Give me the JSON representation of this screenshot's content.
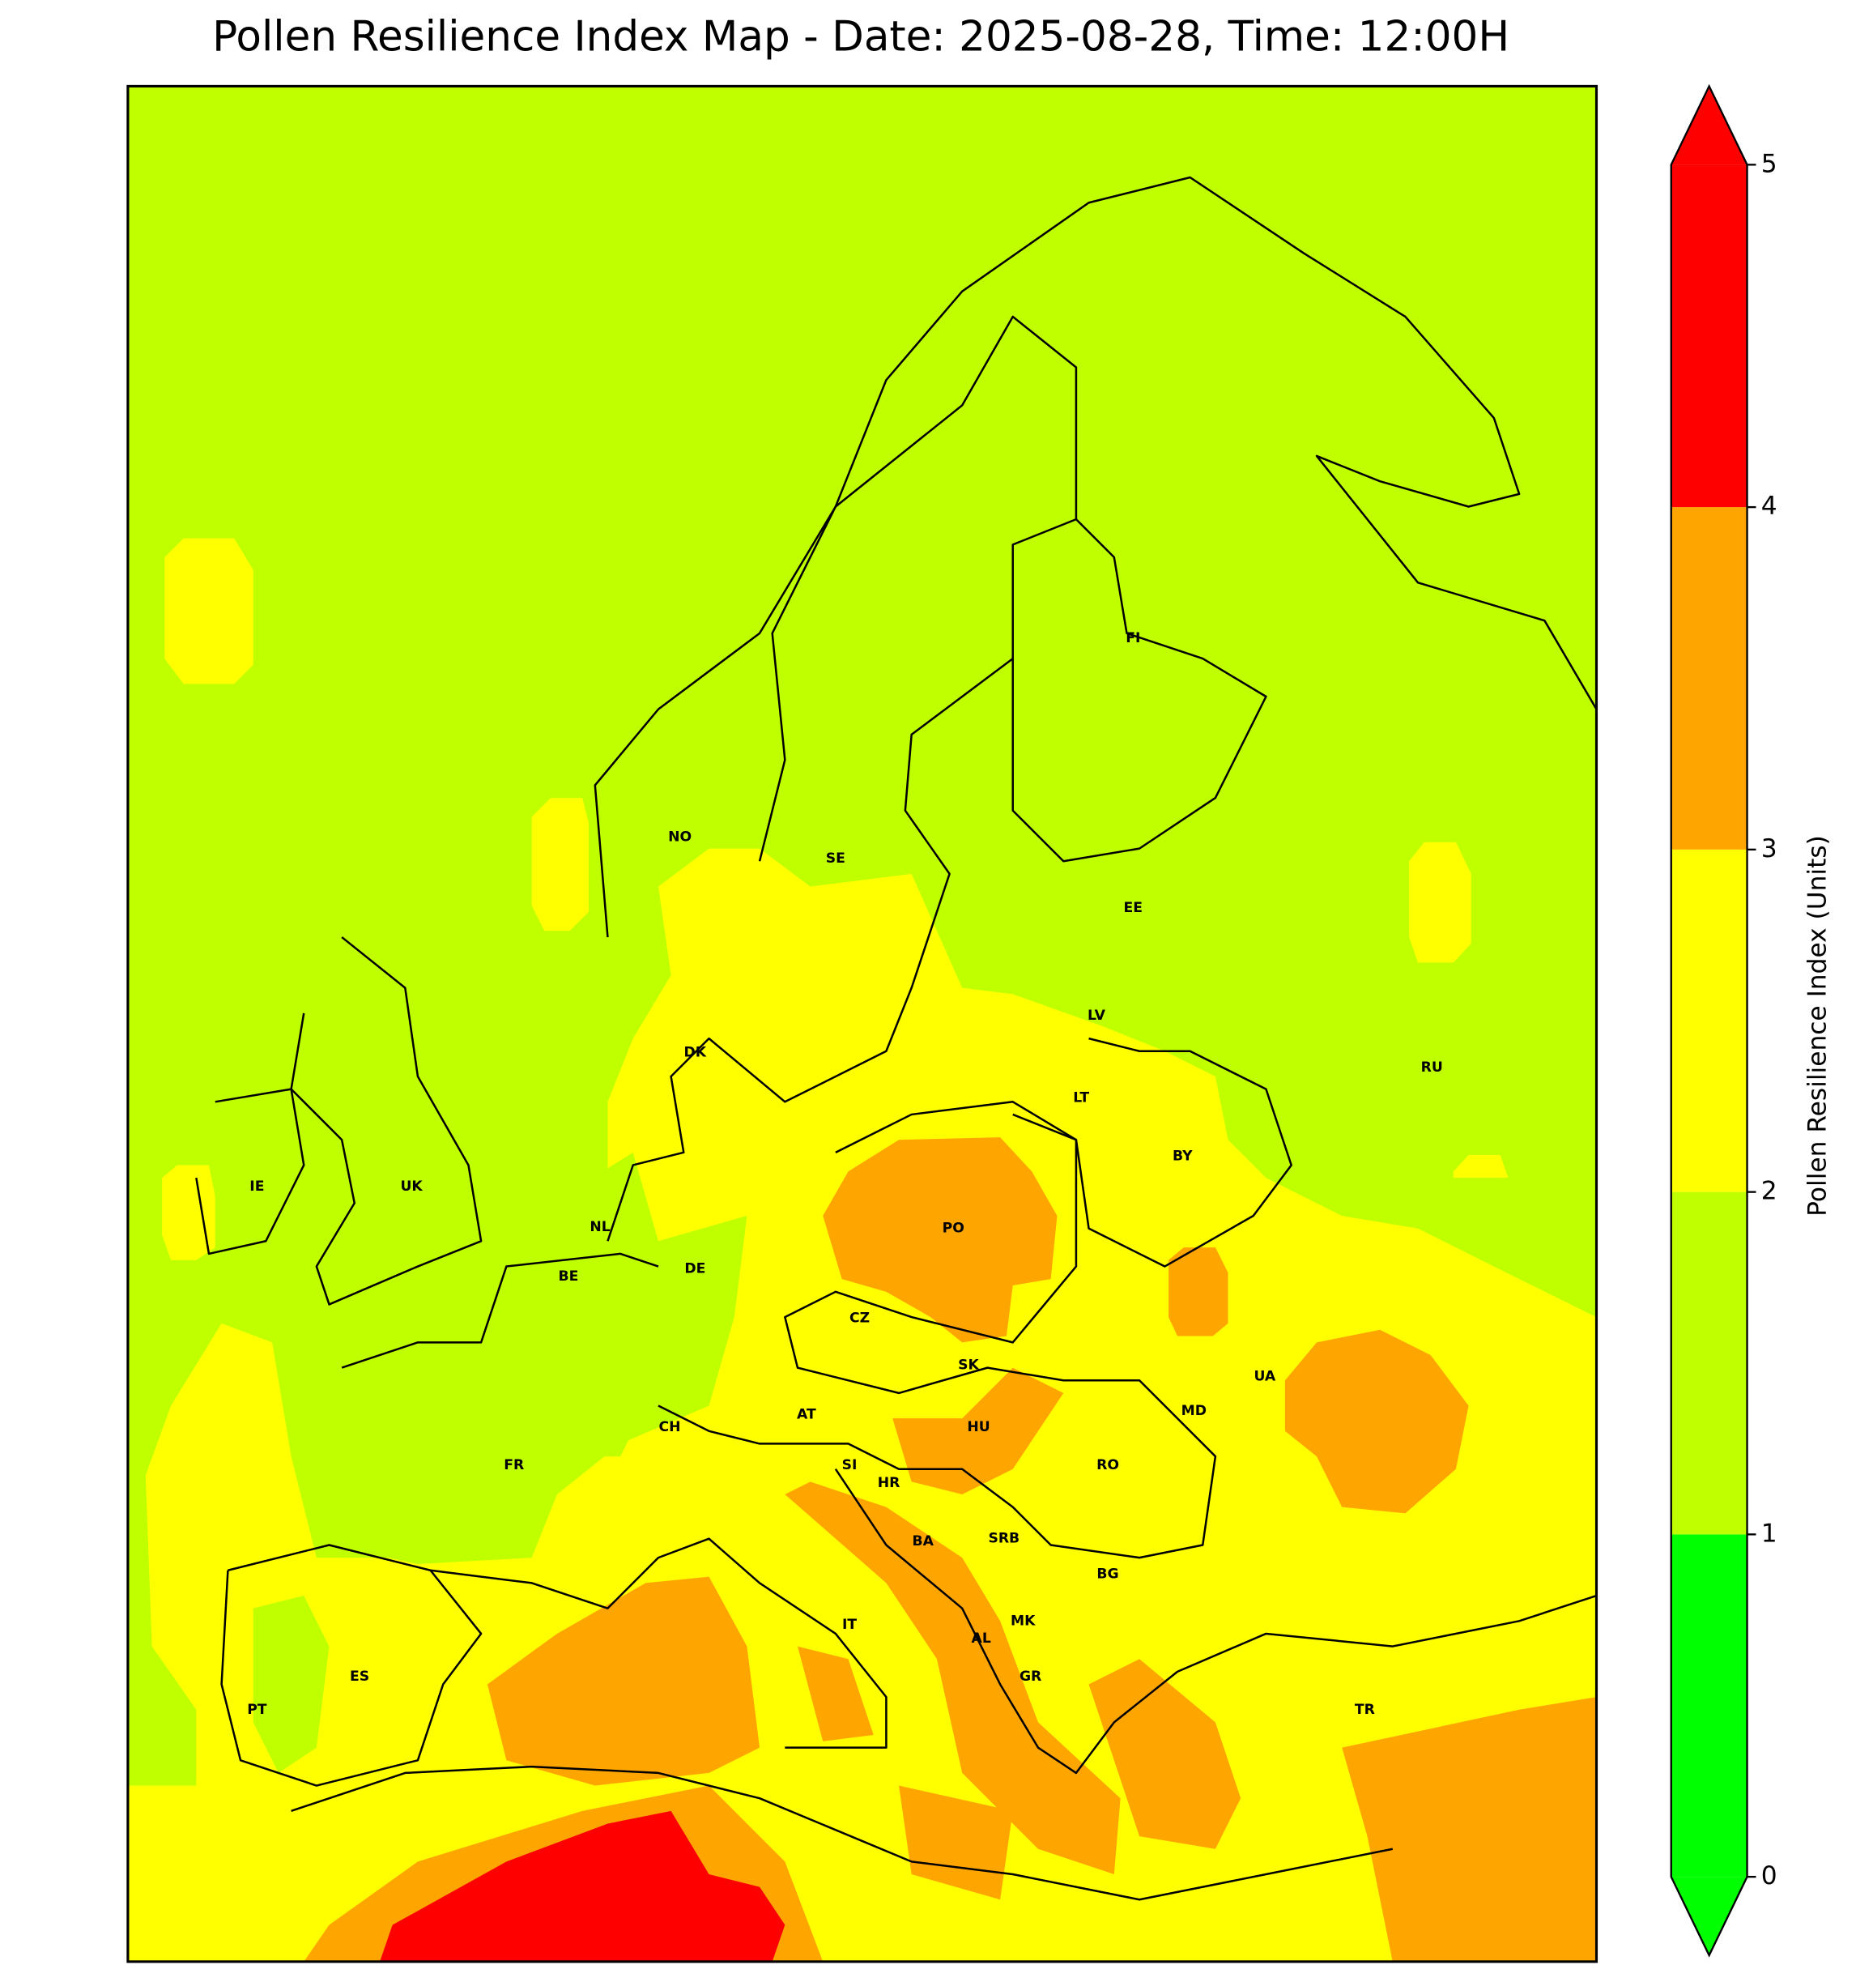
{
  "title": "Pollen Resilience Index Map - Date: 2025-08-28, Time: 12:00H",
  "country_labels": [
    "NO",
    "SE",
    "FI",
    "EE",
    "LV",
    "LT",
    "RU",
    "DK",
    "BY",
    "IE",
    "UK",
    "NL",
    "PO",
    "BE",
    "DE",
    "CZ",
    "UA",
    "SK",
    "MD",
    "AT",
    "CH",
    "HU",
    "FR",
    "RO",
    "SI",
    "HR",
    "BA",
    "SRB",
    "BG",
    "IT",
    "MK",
    "AL",
    "ES",
    "GR",
    "PT",
    "TR"
  ],
  "colorbar": {
    "label": "Pollen Resilience Index (Units)",
    "ticks": [
      0,
      1,
      2,
      3,
      4,
      5
    ],
    "colors": [
      "#00ff00",
      "#bfff00",
      "#ffff00",
      "#ffa500",
      "#ff0000"
    ],
    "extend": "both"
  }
}
